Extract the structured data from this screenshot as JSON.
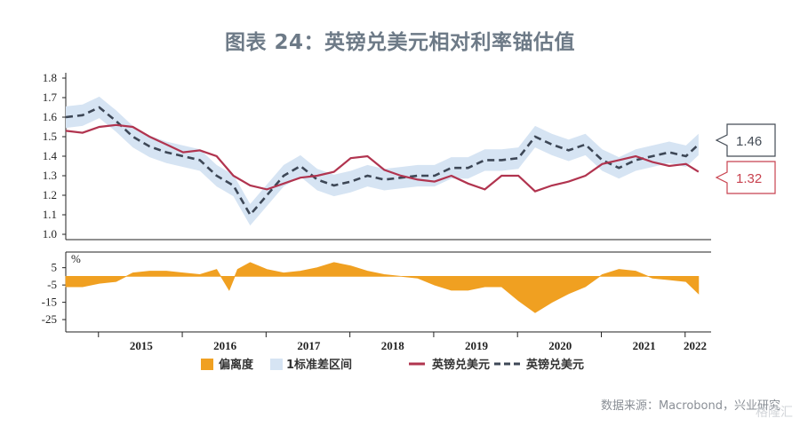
{
  "title": "图表 24：英镑兑美元相对利率锚估值",
  "source": "数据来源：Macrobond，兴业研究",
  "watermark": "格隆汇",
  "callouts": {
    "usd_last": "1.46",
    "gbp_last": "1.32"
  },
  "colors": {
    "actual": "#b1344f",
    "model": "#3d4756",
    "band": "#d6e4f3",
    "deviation": "#f0a021",
    "callout_actual": "#c8424f",
    "callout_model": "#444c56"
  },
  "chart_data": [
    {
      "type": "line",
      "title": "",
      "ylim": [
        1.0,
        1.8
      ],
      "yticks": [
        "1.8",
        "1.7",
        "1.6",
        "1.5",
        "1.4",
        "1.3",
        "1.2",
        "1.1",
        "1.0"
      ],
      "x_start": 2014.6,
      "x_end": 2022.3,
      "x": [
        2014.6,
        2014.8,
        2015.0,
        2015.2,
        2015.4,
        2015.6,
        2015.8,
        2016.0,
        2016.2,
        2016.4,
        2016.6,
        2016.8,
        2017.0,
        2017.2,
        2017.4,
        2017.6,
        2017.8,
        2018.0,
        2018.2,
        2018.4,
        2018.6,
        2018.8,
        2019.0,
        2019.2,
        2019.4,
        2019.6,
        2019.8,
        2020.0,
        2020.2,
        2020.4,
        2020.6,
        2020.8,
        2021.0,
        2021.2,
        2021.4,
        2021.6,
        2021.8,
        2022.0,
        2022.15
      ],
      "series": [
        {
          "name": "英镑兑美元",
          "style": "solid",
          "values": [
            1.53,
            1.52,
            1.55,
            1.56,
            1.55,
            1.5,
            1.46,
            1.42,
            1.43,
            1.4,
            1.3,
            1.25,
            1.23,
            1.26,
            1.29,
            1.3,
            1.32,
            1.39,
            1.4,
            1.33,
            1.3,
            1.28,
            1.27,
            1.3,
            1.26,
            1.23,
            1.3,
            1.3,
            1.22,
            1.25,
            1.27,
            1.3,
            1.36,
            1.38,
            1.4,
            1.37,
            1.35,
            1.36,
            1.32
          ]
        },
        {
          "name": "英镑兑美元",
          "style": "dashed",
          "values": [
            1.6,
            1.61,
            1.65,
            1.58,
            1.5,
            1.45,
            1.42,
            1.4,
            1.38,
            1.3,
            1.25,
            1.1,
            1.2,
            1.3,
            1.35,
            1.28,
            1.25,
            1.27,
            1.3,
            1.28,
            1.29,
            1.3,
            1.3,
            1.34,
            1.34,
            1.38,
            1.38,
            1.39,
            1.5,
            1.46,
            1.43,
            1.46,
            1.38,
            1.34,
            1.38,
            1.4,
            1.42,
            1.4,
            1.46
          ]
        }
      ],
      "band": {
        "name": "1标准差区间",
        "half_width": 0.055
      }
    },
    {
      "type": "area",
      "ylabel": "%",
      "ylim": [
        -27,
        12
      ],
      "yticks": [
        "5",
        "-5",
        "-15",
        "-25"
      ],
      "ytick_values": [
        5,
        -5,
        -15,
        -25
      ],
      "x_start": 2014.6,
      "x_end": 2022.3,
      "x": [
        2014.6,
        2014.8,
        2015.0,
        2015.2,
        2015.4,
        2015.6,
        2015.8,
        2016.0,
        2016.2,
        2016.4,
        2016.55,
        2016.65,
        2016.8,
        2017.0,
        2017.2,
        2017.4,
        2017.6,
        2017.8,
        2018.0,
        2018.2,
        2018.4,
        2018.6,
        2018.8,
        2019.0,
        2019.2,
        2019.4,
        2019.6,
        2019.8,
        2020.0,
        2020.2,
        2020.4,
        2020.6,
        2020.8,
        2021.0,
        2021.2,
        2021.4,
        2021.6,
        2021.8,
        2022.0,
        2022.15
      ],
      "series": [
        {
          "name": "偏离度",
          "values": [
            -6,
            -6,
            -4,
            -3,
            2,
            3,
            3,
            2,
            1,
            4,
            -8,
            4,
            8,
            4,
            2,
            3,
            5,
            8,
            6,
            3,
            1,
            0,
            -1,
            -5,
            -8,
            -8,
            -6,
            -6,
            -14,
            -21,
            -15,
            -10,
            -6,
            1,
            4,
            3,
            -1,
            -2,
            -3,
            -10
          ]
        }
      ]
    }
  ],
  "x_axis": {
    "years": [
      "2015",
      "2016",
      "2017",
      "2018",
      "2019",
      "2020",
      "2021",
      "2022"
    ]
  },
  "legend": [
    "偏离度",
    "1标准差区间",
    "英镑兑美元",
    "英镑兑美元"
  ]
}
